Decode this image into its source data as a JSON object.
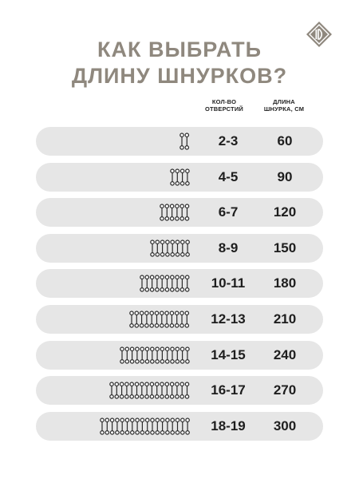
{
  "title": {
    "line1": "КАК ВЫБРАТЬ",
    "line2": "ДЛИНУ ШНУРКОВ?"
  },
  "logo": {
    "icon": "brand-logo-icon",
    "color": "#8f887e"
  },
  "headers": {
    "holes_line1": "КОЛ-ВО",
    "holes_line2": "ОТВЕРСТИЙ",
    "length_line1": "ДЛИНА",
    "length_line2": "ШНУРКА, СМ"
  },
  "rows": [
    {
      "pairs": 2,
      "range": "2-3",
      "length": "60"
    },
    {
      "pairs": 4,
      "range": "4-5",
      "length": "90"
    },
    {
      "pairs": 6,
      "range": "6-7",
      "length": "120"
    },
    {
      "pairs": 8,
      "range": "8-9",
      "length": "150"
    },
    {
      "pairs": 10,
      "range": "10-11",
      "length": "180"
    },
    {
      "pairs": 12,
      "range": "12-13",
      "length": "210"
    },
    {
      "pairs": 14,
      "range": "14-15",
      "length": "240"
    },
    {
      "pairs": 16,
      "range": "16-17",
      "length": "270"
    },
    {
      "pairs": 18,
      "range": "18-19",
      "length": "300"
    }
  ],
  "colors": {
    "accent": "#8f887e",
    "row_bg": "#e6e6e6",
    "text": "#1e1e1e"
  }
}
